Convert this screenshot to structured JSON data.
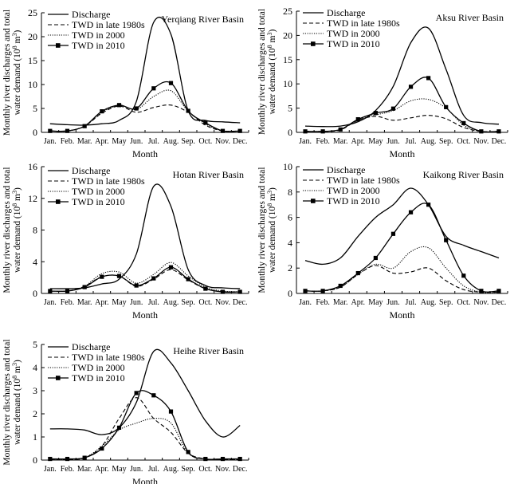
{
  "months": [
    "Jan.",
    "Feb.",
    "Mar.",
    "Apr.",
    "May",
    "Jun.",
    "Jul.",
    "Aug.",
    "Sep.",
    "Oct.",
    "Nov.",
    "Dec."
  ],
  "xlabel": "Month",
  "ylabel_line1": "Monthly river discharges and total",
  "ylabel_line2": "water demand",
  "ylabel_unit_base": "(10",
  "ylabel_unit_exp": "8",
  "ylabel_unit_m": " m",
  "ylabel_unit_m_exp": "3",
  "ylabel_unit_close": ")",
  "legend": [
    "Discharge",
    "TWD in late 1980s",
    "TWD in 2000",
    "TWD in 2010"
  ],
  "series_styles": [
    {
      "name": "Discharge",
      "color": "#000000",
      "dash": "",
      "width": 1.3,
      "marker": "none"
    },
    {
      "name": "TWD in late 1980s",
      "color": "#000000",
      "dash": "5,3",
      "width": 1.1,
      "marker": "none"
    },
    {
      "name": "TWD in 2000",
      "color": "#000000",
      "dash": "1.2,1.6",
      "width": 1.1,
      "marker": "none"
    },
    {
      "name": "TWD in 2010",
      "color": "#000000",
      "dash": "",
      "width": 1.3,
      "marker": "square"
    }
  ],
  "chart_data": [
    {
      "type": "line",
      "title": "Yerqiang River Basin",
      "ylim": [
        0,
        25
      ],
      "yticks": [
        0,
        5,
        10,
        15,
        20,
        25
      ],
      "series": [
        {
          "name": "Discharge",
          "values": [
            1.8,
            1.6,
            1.5,
            1.8,
            2.5,
            6.5,
            23.0,
            20.5,
            4.5,
            2.5,
            2.2,
            2.0
          ]
        },
        {
          "name": "TWD in late 1980s",
          "values": [
            0.3,
            0.3,
            1.3,
            4.0,
            5.5,
            4.2,
            5.2,
            5.7,
            4.2,
            1.5,
            0.3,
            0.3
          ]
        },
        {
          "name": "TWD in 2000",
          "values": [
            0.3,
            0.3,
            1.3,
            4.2,
            5.6,
            4.8,
            7.5,
            8.7,
            4.4,
            1.8,
            0.3,
            0.3
          ]
        },
        {
          "name": "TWD in 2010",
          "values": [
            0.3,
            0.3,
            1.3,
            4.4,
            5.7,
            5.0,
            9.2,
            10.3,
            4.5,
            2.0,
            0.3,
            0.3
          ]
        }
      ]
    },
    {
      "type": "line",
      "title": "Aksu River Basin",
      "ylim": [
        0,
        25
      ],
      "yticks": [
        0,
        5,
        10,
        15,
        20,
        25
      ],
      "series": [
        {
          "name": "Discharge",
          "values": [
            1.3,
            1.2,
            1.3,
            2.2,
            4.5,
            9.5,
            18.5,
            21.5,
            13.0,
            3.5,
            2.0,
            1.7
          ]
        },
        {
          "name": "TWD in late 1980s",
          "values": [
            0.2,
            0.2,
            0.5,
            2.5,
            3.3,
            2.5,
            3.0,
            3.5,
            2.8,
            1.0,
            0.2,
            0.2
          ]
        },
        {
          "name": "TWD in 2000",
          "values": [
            0.2,
            0.2,
            0.6,
            2.6,
            3.6,
            4.5,
            6.5,
            6.8,
            5.0,
            1.5,
            0.2,
            0.2
          ]
        },
        {
          "name": "TWD in 2010",
          "values": [
            0.2,
            0.2,
            0.6,
            2.7,
            4.0,
            4.9,
            9.4,
            11.2,
            5.2,
            1.9,
            0.2,
            0.2
          ]
        }
      ]
    },
    {
      "type": "line",
      "title": "Hotan River Basin",
      "ylim": [
        0,
        16
      ],
      "yticks": [
        0,
        4,
        8,
        12,
        16
      ],
      "series": [
        {
          "name": "Discharge",
          "values": [
            0.6,
            0.6,
            0.7,
            1.2,
            1.8,
            5.0,
            13.5,
            11.0,
            3.0,
            1.0,
            0.7,
            0.6
          ]
        },
        {
          "name": "TWD in late 1980s",
          "values": [
            0.3,
            0.3,
            0.9,
            2.1,
            2.2,
            0.9,
            1.8,
            3.0,
            1.7,
            0.6,
            0.2,
            0.2
          ]
        },
        {
          "name": "TWD in 2000",
          "values": [
            0.3,
            0.3,
            0.9,
            2.5,
            2.7,
            1.3,
            2.4,
            3.9,
            2.2,
            0.8,
            0.3,
            0.2
          ]
        },
        {
          "name": "TWD in 2010",
          "values": [
            0.3,
            0.3,
            0.8,
            2.1,
            2.2,
            1.0,
            1.9,
            3.3,
            1.8,
            0.6,
            0.2,
            0.2
          ]
        }
      ]
    },
    {
      "type": "line",
      "title": "Kaikong River Basin",
      "ylim": [
        0,
        10
      ],
      "yticks": [
        0,
        2,
        4,
        6,
        8,
        10
      ],
      "series": [
        {
          "name": "Discharge",
          "values": [
            2.6,
            2.3,
            2.8,
            4.5,
            6.0,
            7.0,
            8.3,
            7.0,
            4.5,
            3.8,
            3.3,
            2.8
          ]
        },
        {
          "name": "TWD in late 1980s",
          "values": [
            0.2,
            0.2,
            0.5,
            1.5,
            2.2,
            1.6,
            1.7,
            2.0,
            1.0,
            0.3,
            0.1,
            0.1
          ]
        },
        {
          "name": "TWD in 2000",
          "values": [
            0.2,
            0.2,
            0.5,
            1.5,
            2.3,
            2.0,
            3.3,
            3.6,
            2.0,
            0.6,
            0.1,
            0.1
          ]
        },
        {
          "name": "TWD in 2010",
          "values": [
            0.2,
            0.2,
            0.6,
            1.6,
            2.8,
            4.7,
            6.4,
            7.0,
            4.2,
            1.4,
            0.2,
            0.2
          ]
        }
      ]
    },
    {
      "type": "line",
      "title": "Heihe River  Basin",
      "ylim": [
        0,
        5
      ],
      "yticks": [
        0,
        1,
        2,
        3,
        4,
        5
      ],
      "series": [
        {
          "name": "Discharge",
          "values": [
            1.35,
            1.35,
            1.3,
            1.1,
            1.4,
            2.5,
            4.7,
            4.2,
            3.0,
            1.7,
            1.0,
            1.5
          ]
        },
        {
          "name": "TWD in late 1980s",
          "values": [
            0.03,
            0.03,
            0.1,
            0.6,
            1.8,
            2.7,
            1.8,
            1.2,
            0.3,
            0.05,
            0.03,
            0.03
          ]
        },
        {
          "name": "TWD in 2000",
          "values": [
            0.03,
            0.03,
            0.1,
            0.6,
            1.3,
            1.6,
            1.8,
            1.6,
            0.3,
            0.05,
            0.03,
            0.03
          ]
        },
        {
          "name": "TWD in 2010",
          "values": [
            0.05,
            0.05,
            0.1,
            0.5,
            1.4,
            2.9,
            2.8,
            2.1,
            0.35,
            0.05,
            0.05,
            0.05
          ]
        }
      ]
    }
  ]
}
